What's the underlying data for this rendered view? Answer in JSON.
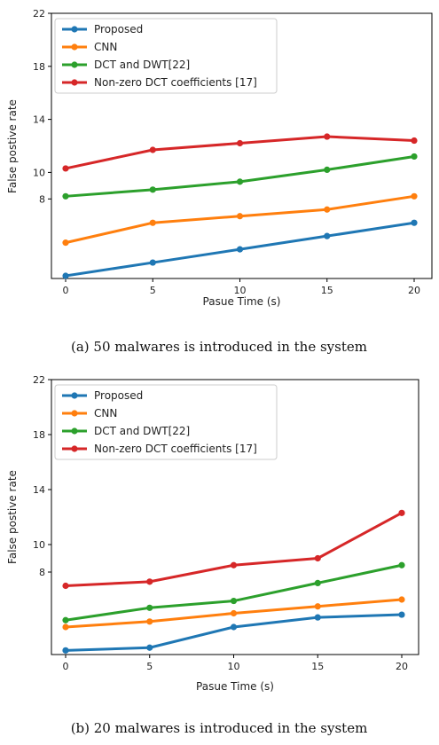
{
  "chart_data": [
    {
      "type": "line",
      "caption": "(a)  50 malwares is introduced in the system",
      "xlabel": "Pasue Time (s)",
      "ylabel": "False postive rate",
      "x": [
        0,
        5,
        10,
        15,
        20
      ],
      "xticks": [
        "0",
        "5",
        "10",
        "15",
        "20"
      ],
      "yticks": [
        "22",
        "18",
        "14",
        "10",
        "8"
      ],
      "ylim": [
        2,
        22
      ],
      "legend_position": "top-left",
      "grid": false,
      "series": [
        {
          "name": "Proposed",
          "color": "#1f77b4",
          "values": [
            2.2,
            3.2,
            4.2,
            5.2,
            6.2
          ]
        },
        {
          "name": "CNN",
          "color": "#ff7f0e",
          "values": [
            4.7,
            6.2,
            6.7,
            7.2,
            8.2
          ]
        },
        {
          "name": "DCT and DWT[22]",
          "color": "#2ca02c",
          "values": [
            8.2,
            8.7,
            9.3,
            10.2,
            11.2
          ]
        },
        {
          "name": "Non-zero DCT coefficients [17]",
          "color": "#d62728",
          "values": [
            10.3,
            11.7,
            12.2,
            12.7,
            12.4
          ]
        }
      ]
    },
    {
      "type": "line",
      "caption": "(b)    20 malwares is introduced in the system",
      "xlabel": "Pasue Time (s)",
      "ylabel": "False postive rate",
      "x": [
        0,
        5,
        10,
        15,
        20
      ],
      "xticks": [
        "0",
        "5",
        "10",
        "15",
        "20"
      ],
      "yticks": [
        "22",
        "18",
        "14",
        "10",
        "8"
      ],
      "ylim": [
        2,
        22
      ],
      "legend_position": "top-left",
      "grid": false,
      "series": [
        {
          "name": "Proposed",
          "color": "#1f77b4",
          "values": [
            2.3,
            2.5,
            4.0,
            4.7,
            4.9
          ]
        },
        {
          "name": "CNN",
          "color": "#ff7f0e",
          "values": [
            4.0,
            4.4,
            5.0,
            5.5,
            6.0
          ]
        },
        {
          "name": "DCT and DWT[22]",
          "color": "#2ca02c",
          "values": [
            4.5,
            5.4,
            5.9,
            7.2,
            8.5
          ]
        },
        {
          "name": "Non-zero DCT coefficients [17]",
          "color": "#d62728",
          "values": [
            7.0,
            7.3,
            8.5,
            9.0,
            12.3
          ]
        }
      ]
    }
  ]
}
